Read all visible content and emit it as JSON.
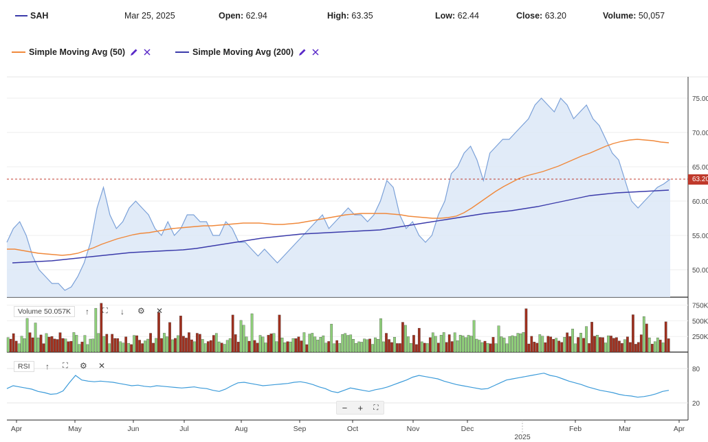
{
  "header": {
    "symbol": "SAH",
    "date": "Mar 25, 2025",
    "open_label": "Open:",
    "open_value": "62.94",
    "high_label": "High:",
    "high_value": "63.35",
    "low_label": "Low:",
    "low_value": "62.44",
    "close_label": "Close:",
    "close_value": "63.20",
    "volume_label": "Volume:",
    "volume_value": "50,057"
  },
  "indicators": [
    {
      "label": "Simple Moving Avg (50)",
      "color": "#f0883a"
    },
    {
      "label": "Simple Moving Avg (200)",
      "color": "#3a3aaa"
    }
  ],
  "colors": {
    "price_line": "#7aa0d8",
    "price_fill": "#dce8f7",
    "sma50": "#f0883a",
    "sma200": "#3a3aaa",
    "vol_up": "#8fcf7a",
    "vol_down": "#a0301e",
    "rsi_line": "#3a9ad9",
    "last_price": "#c0392b"
  },
  "price_tag": "63.20",
  "volume_label": "Volume 50.057K",
  "rsi_label": "RSI",
  "zoom": {
    "minus": "−",
    "plus": "+",
    "fit": "⛶"
  },
  "chart_data": [
    {
      "type": "line",
      "name": "price",
      "ylim": [
        46,
        77
      ],
      "y_ticks": [
        "75.00",
        "70.00",
        "65.00",
        "60.00",
        "55.00",
        "50.00"
      ],
      "x_ticks": [
        "Apr",
        "May",
        "Jun",
        "Jul",
        "Aug",
        "Sep",
        "Oct",
        "Nov",
        "Dec",
        "2025",
        "Feb",
        "Mar",
        "Apr"
      ],
      "x_tick_year_label": "2025",
      "last_price": 63.2,
      "series": [
        {
          "name": "SAH",
          "values": [
            54,
            56,
            57,
            55,
            52,
            50,
            49,
            48,
            48,
            47,
            47.5,
            49,
            51,
            54,
            59,
            62,
            58,
            56,
            57,
            59,
            60,
            59,
            58,
            56,
            55,
            57,
            55,
            56,
            58,
            58,
            57,
            57,
            55,
            55,
            57,
            56,
            54,
            54,
            53,
            52,
            53,
            52,
            51,
            52,
            53,
            54,
            55,
            56,
            57,
            58,
            56,
            57,
            58,
            59,
            58,
            58,
            57,
            58,
            60,
            63,
            62,
            58,
            56,
            57,
            55,
            54,
            55,
            58,
            60,
            64,
            65,
            67,
            68,
            66,
            63,
            67,
            68,
            69,
            69,
            70,
            71,
            72,
            74,
            75,
            74,
            73,
            75,
            74,
            72,
            73,
            74,
            72,
            71,
            69,
            67,
            66,
            63,
            60,
            59,
            60,
            61,
            62,
            62.5,
            63.2
          ]
        },
        {
          "name": "Simple Moving Avg (50)",
          "values": [
            53,
            53,
            52.8,
            52.6,
            52.4,
            52.3,
            52.2,
            52.1,
            52.2,
            52.4,
            52.8,
            53.2,
            53.7,
            54.1,
            54.5,
            54.8,
            55.1,
            55.3,
            55.4,
            55.6,
            55.8,
            56.0,
            56.1,
            56.2,
            56.3,
            56.4,
            56.4,
            56.5,
            56.6,
            56.7,
            56.8,
            56.8,
            56.8,
            56.7,
            56.6,
            56.6,
            56.7,
            56.8,
            57.0,
            57.2,
            57.4,
            57.6,
            57.8,
            58.0,
            58.1,
            58.2,
            58.2,
            58.2,
            58.2,
            58.1,
            58.0,
            57.8,
            57.7,
            57.6,
            57.5,
            57.5,
            57.6,
            57.8,
            58.3,
            59.0,
            59.8,
            60.6,
            61.4,
            62.1,
            62.7,
            63.3,
            63.7,
            64.0,
            64.3,
            64.7,
            65.1,
            65.6,
            66.1,
            66.6,
            67.0,
            67.5,
            68.0,
            68.4,
            68.7,
            68.9,
            69.0,
            68.9,
            68.8,
            68.6,
            68.5
          ]
        },
        {
          "name": "Simple Moving Avg (200)",
          "values": [
            51,
            51.1,
            51.2,
            51.3,
            51.5,
            51.7,
            51.9,
            52.1,
            52.3,
            52.5,
            52.6,
            52.7,
            52.8,
            52.9,
            53.1,
            53.4,
            53.7,
            54.0,
            54.3,
            54.6,
            54.8,
            55.0,
            55.2,
            55.3,
            55.4,
            55.5,
            55.6,
            55.7,
            55.8,
            56.1,
            56.4,
            56.7,
            57.0,
            57.3,
            57.6,
            57.9,
            58.2,
            58.4,
            58.6,
            58.9,
            59.2,
            59.6,
            60.0,
            60.4,
            60.8,
            61.0,
            61.2,
            61.3,
            61.4,
            61.5,
            61.6
          ]
        }
      ]
    },
    {
      "type": "bar",
      "name": "volume",
      "y_ticks": [
        "750K",
        "500K",
        "250K"
      ],
      "ylim": [
        0,
        800000
      ]
    },
    {
      "type": "line",
      "name": "rsi",
      "y_ticks": [
        "80",
        "20"
      ],
      "ylim": [
        10,
        90
      ],
      "values": [
        45,
        50,
        48,
        46,
        44,
        40,
        38,
        35,
        36,
        41,
        55,
        68,
        60,
        58,
        57,
        58,
        57,
        56,
        54,
        52,
        50,
        51,
        49,
        48,
        50,
        49,
        48,
        47,
        46,
        47,
        48,
        46,
        45,
        42,
        40,
        44,
        50,
        55,
        56,
        54,
        52,
        50,
        51,
        52,
        53,
        54,
        56,
        57,
        55,
        52,
        48,
        45,
        40,
        38,
        42,
        46,
        44,
        42,
        40,
        43,
        45,
        48,
        52,
        56,
        60,
        65,
        68,
        66,
        64,
        62,
        58,
        55,
        52,
        50,
        48,
        46,
        44,
        45,
        50,
        55,
        60,
        62,
        64,
        66,
        68,
        70,
        72,
        68,
        66,
        62,
        58,
        55,
        52,
        48,
        45,
        42,
        40,
        38,
        35,
        33,
        32,
        30,
        31,
        33,
        36,
        40,
        42
      ]
    }
  ]
}
